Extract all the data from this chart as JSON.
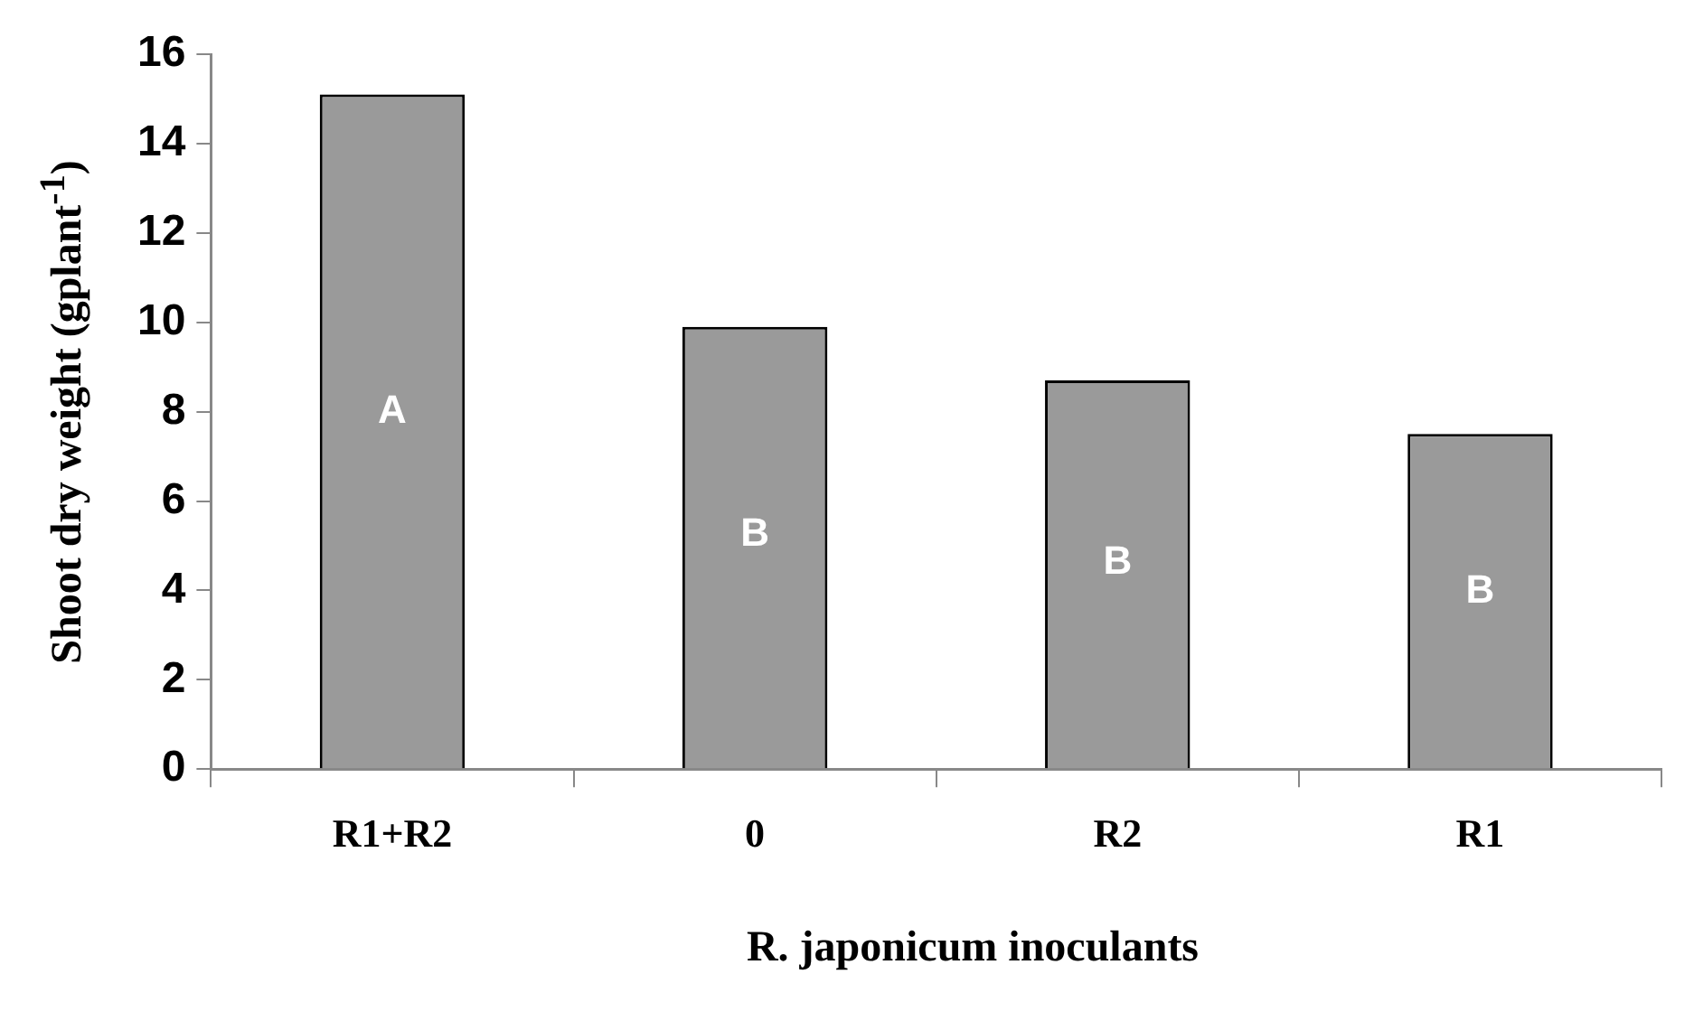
{
  "chart_data": {
    "type": "bar",
    "xlabel": "R. japonicum inoculants",
    "ylabel": "Shoot dry weight (gplant$^{-1}$)",
    "categories": [
      "R1+R2",
      "0",
      "R2",
      "R1"
    ],
    "values": [
      15.1,
      9.9,
      8.7,
      7.5
    ],
    "color": "#9a9a9a",
    "ylim": [
      0,
      16
    ],
    "yticks": [
      0,
      2,
      4,
      6,
      8,
      10,
      12,
      14,
      16
    ],
    "grid": false,
    "legend": false,
    "annotations": [
      "A",
      "B",
      "B",
      "B"
    ]
  }
}
